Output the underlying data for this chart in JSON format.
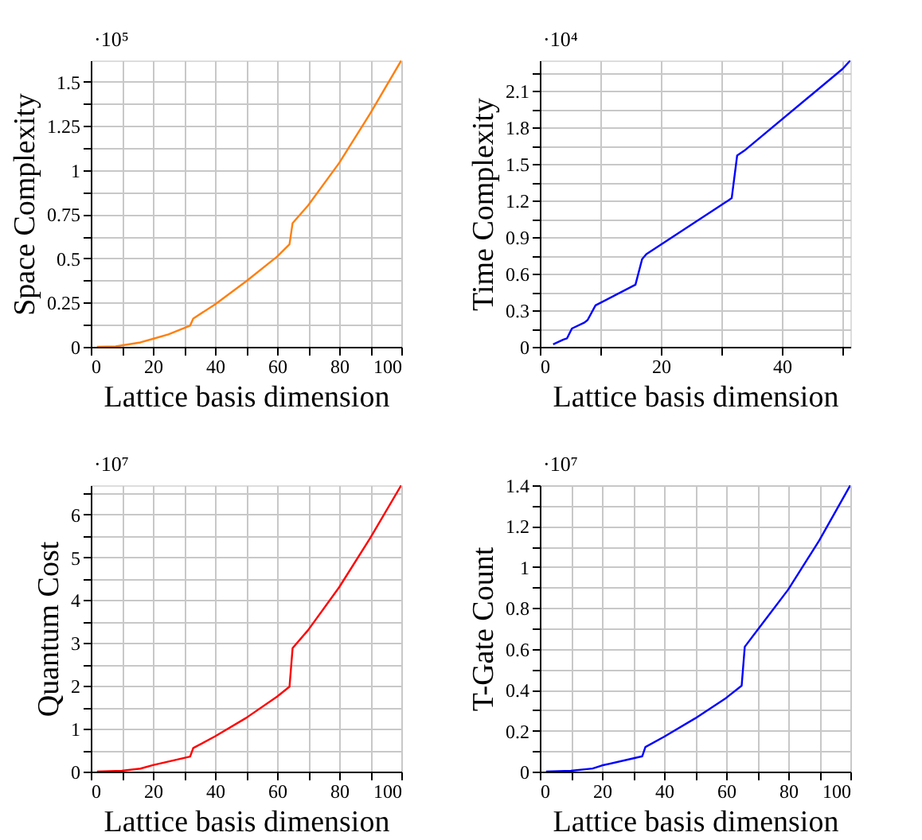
{
  "chart_data": [
    {
      "type": "line",
      "xlabel": "Lattice basis dimension",
      "ylabel": "Space Complexity",
      "annotations": [
        "·10⁵"
      ],
      "grid": true,
      "xlim": [
        0,
        100
      ],
      "ylim": [
        0,
        1.62
      ],
      "xticks": [
        0,
        {
          "value": 10,
          "label": null
        },
        20,
        {
          "value": 30,
          "label": null
        },
        40,
        {
          "value": 50,
          "label": null
        },
        60,
        {
          "value": 70,
          "label": null
        },
        80,
        {
          "value": 90,
          "label": null
        },
        100
      ],
      "yticks": [
        0,
        {
          "value": 0.125,
          "label": null
        },
        0.25,
        {
          "value": 0.375,
          "label": null
        },
        0.5,
        {
          "value": 0.625,
          "label": null
        },
        0.75,
        {
          "value": 0.875,
          "label": null
        },
        1,
        {
          "value": 1.125,
          "label": null
        },
        1.25,
        {
          "value": 1.375,
          "label": null
        },
        1.5
      ],
      "series": [
        {
          "color": "#ff7f0e",
          "x": [
            2,
            8,
            16,
            20,
            25,
            32,
            33,
            40,
            50,
            60,
            64,
            65,
            70,
            80,
            90,
            100
          ],
          "values": [
            0,
            0.002,
            0.025,
            0.045,
            0.07,
            0.12,
            0.16,
            0.24,
            0.37,
            0.51,
            0.58,
            0.7,
            0.8,
            1.04,
            1.32,
            1.62
          ]
        }
      ]
    },
    {
      "type": "line",
      "xlabel": "Lattice basis dimension",
      "ylabel": "Time Complexity",
      "annotations": [
        "·10⁴"
      ],
      "grid": true,
      "xlim": [
        0,
        51.3
      ],
      "ylim": [
        0,
        2.35
      ],
      "xticks": [
        0,
        {
          "value": 10,
          "label": null
        },
        20,
        {
          "value": 30,
          "label": null
        },
        40,
        {
          "value": 50,
          "label": null
        }
      ],
      "yticks": [
        0,
        {
          "value": 0.15,
          "label": null
        },
        0.3,
        {
          "value": 0.45,
          "label": null
        },
        0.6,
        {
          "value": 0.75,
          "label": null
        },
        0.9,
        {
          "value": 1.05,
          "label": null
        },
        1.2,
        {
          "value": 1.35,
          "label": null
        },
        1.5,
        {
          "value": 1.65,
          "label": null
        },
        1.8,
        {
          "value": 1.95,
          "label": null
        },
        2.1,
        {
          "value": 2.25,
          "label": null
        }
      ],
      "series": [
        {
          "color": "#0000ff",
          "x": [
            2.2,
            3.9,
            4.5,
            5.3,
            7.4,
            7.9,
            9.2,
            15.8,
            16.9,
            17.6,
            31.1,
            31.7,
            32.6,
            33.8,
            50,
            51.3
          ],
          "values": [
            0.02,
            0.06,
            0.07,
            0.15,
            0.2,
            0.22,
            0.34,
            0.51,
            0.72,
            0.76,
            1.2,
            1.22,
            1.57,
            1.61,
            2.28,
            2.35
          ]
        }
      ]
    },
    {
      "type": "line",
      "xlabel": "Lattice basis dimension",
      "ylabel": "Quantum Cost",
      "annotations": [
        "·10⁷"
      ],
      "grid": true,
      "xlim": [
        0,
        100
      ],
      "ylim": [
        0,
        6.68
      ],
      "xticks": [
        0,
        {
          "value": 10,
          "label": null
        },
        20,
        {
          "value": 30,
          "label": null
        },
        40,
        {
          "value": 50,
          "label": null
        },
        60,
        {
          "value": 70,
          "label": null
        },
        80,
        {
          "value": 90,
          "label": null
        },
        100
      ],
      "yticks": [
        0,
        {
          "value": 0.5,
          "label": null
        },
        1,
        {
          "value": 1.5,
          "label": null
        },
        2,
        {
          "value": 2.5,
          "label": null
        },
        3,
        {
          "value": 3.5,
          "label": null
        },
        4,
        {
          "value": 4.5,
          "label": null
        },
        5,
        {
          "value": 5.5,
          "label": null
        },
        6,
        {
          "value": 6.5,
          "label": null
        }
      ],
      "series": [
        {
          "color": "#ff0000",
          "x": [
            2,
            10,
            16,
            20,
            32,
            33,
            40,
            50,
            60,
            64,
            65,
            70,
            80,
            90,
            100
          ],
          "values": [
            0,
            0.02,
            0.07,
            0.15,
            0.35,
            0.55,
            0.82,
            1.25,
            1.75,
            1.98,
            2.88,
            3.3,
            4.3,
            5.45,
            6.68
          ]
        }
      ]
    },
    {
      "type": "line",
      "xlabel": "Lattice basis dimension",
      "ylabel": "T-Gate Count",
      "annotations": [
        "·10⁷"
      ],
      "grid": true,
      "xlim": [
        0,
        100
      ],
      "ylim": [
        0,
        1.4
      ],
      "xticks": [
        0,
        {
          "value": 10,
          "label": null
        },
        20,
        {
          "value": 30,
          "label": null
        },
        40,
        {
          "value": 50,
          "label": null
        },
        60,
        {
          "value": 70,
          "label": null
        },
        80,
        {
          "value": 90,
          "label": null
        },
        100
      ],
      "yticks": [
        0,
        {
          "value": 0.1,
          "label": null
        },
        0.2,
        {
          "value": 0.3,
          "label": null
        },
        0.4,
        {
          "value": 0.5,
          "label": null
        },
        0.6,
        {
          "value": 0.7,
          "label": null
        },
        0.8,
        {
          "value": 0.9,
          "label": null
        },
        1,
        {
          "value": 1.1,
          "label": null
        },
        1.2,
        {
          "value": 1.3,
          "label": null
        },
        1.4
      ],
      "series": [
        {
          "color": "#0000ff",
          "x": [
            2,
            10,
            17,
            20,
            33,
            34,
            40,
            50,
            60,
            65,
            66,
            70,
            80,
            90,
            100
          ],
          "values": [
            0,
            0.004,
            0.015,
            0.03,
            0.075,
            0.12,
            0.17,
            0.26,
            0.36,
            0.42,
            0.61,
            0.69,
            0.89,
            1.13,
            1.4
          ]
        }
      ]
    }
  ]
}
